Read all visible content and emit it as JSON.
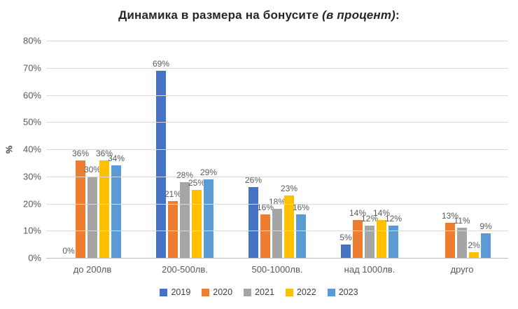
{
  "title": {
    "main": "Динамика в размера на бонусите ",
    "em": "(в процент)",
    "colon": ":"
  },
  "chart_data": {
    "type": "bar",
    "title": "Динамика в размера на бонусите (в процент):",
    "xlabel": "",
    "ylabel": "%",
    "ylim": [
      0,
      80
    ],
    "grid": true,
    "legend_position": "bottom",
    "ytick_values": [
      80,
      70,
      60,
      50,
      40,
      30,
      20,
      10,
      0
    ],
    "ytick_labels": [
      "80%",
      "70%",
      "60%",
      "50%",
      "40%",
      "30%",
      "20%",
      "10%",
      "0%"
    ],
    "categories": [
      "до 200лв",
      "200-500лв.",
      "500-1000лв.",
      "над 1000лв.",
      "друго"
    ],
    "series": [
      {
        "name": "2019",
        "color": "#4472C4",
        "values": [
          0,
          69,
          26,
          5,
          0
        ],
        "labels": [
          "0%",
          "69%",
          "26%",
          "5%",
          ""
        ]
      },
      {
        "name": "2020",
        "color": "#ED7D31",
        "values": [
          36,
          21,
          16,
          14,
          13
        ],
        "labels": [
          "36%",
          "21%",
          "16%",
          "14%",
          "13%"
        ]
      },
      {
        "name": "2021",
        "color": "#A5A5A5",
        "values": [
          30,
          28,
          18,
          12,
          11
        ],
        "labels": [
          "30%",
          "28%",
          "18%",
          "12%",
          "11%"
        ]
      },
      {
        "name": "2022",
        "color": "#FFC000",
        "values": [
          36,
          25,
          23,
          14,
          2
        ],
        "labels": [
          "36%",
          "25%",
          "23%",
          "14%",
          "2%"
        ]
      },
      {
        "name": "2023",
        "color": "#5B9BD5",
        "values": [
          34,
          29,
          16,
          12,
          9
        ],
        "labels": [
          "34%",
          "29%",
          "16%",
          "12%",
          "9%"
        ]
      }
    ]
  }
}
